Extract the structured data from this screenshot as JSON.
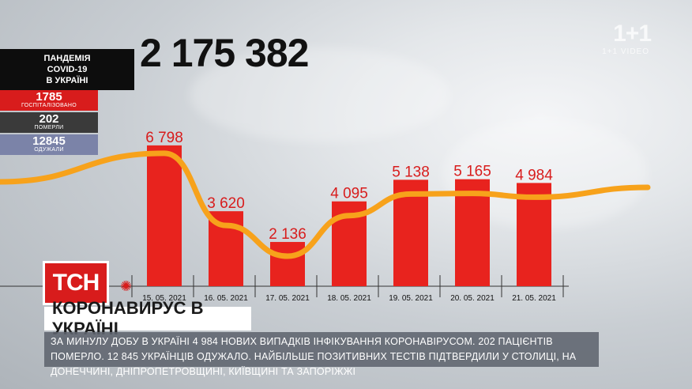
{
  "total": "2 175 382",
  "panel": {
    "title_lines": [
      "ПАНДЕМІЯ",
      "COVID-19",
      "В УКРАЇНІ"
    ],
    "hospitalized": {
      "value": "1785",
      "label": "ГОСПІТАЛІЗОВАНО"
    },
    "died": {
      "value": "202",
      "label": "ПОМЕРЛИ"
    },
    "recovered": {
      "value": "12845",
      "label": "ОДУЖАЛИ"
    }
  },
  "logo": {
    "main": "1+1",
    "sub": "1+1 VIDEO"
  },
  "brand": "ТСН",
  "headline": "КОРОНАВИРУС В УКРАЇНІ",
  "ticker": "ЗА МИНУЛУ ДОБУ В УКРАЇНІ 4 984 НОВИХ ВИПАДКІВ ІНФІКУВАННЯ КОРОНАВІРУСОМ. 202 ПАЦІЄНТІВ ПОМЕРЛО. 12 845 УКРАЇНЦІВ ОДУЖАЛО. НАЙБІЛЬШЕ ПОЗИТИВНИХ ТЕСТІВ ПІДТВЕРДИЛИ У СТОЛИЦІ, НА ДОНЕЧЧИНІ, ДНІПРОПЕТРОВЩИНІ, КИЇВЩИНІ ТА ЗАПОРІЖЖІ",
  "colors": {
    "bar": "#e8231e",
    "trend": "#f7a21b",
    "accent": "#d81c1c"
  },
  "chart_data": {
    "type": "bar",
    "categories": [
      "15. 05. 2021",
      "16. 05. 2021",
      "17. 05. 2021",
      "18. 05. 2021",
      "19. 05. 2021",
      "20. 05. 2021",
      "21. 05. 2021"
    ],
    "values": [
      6798,
      3620,
      2136,
      4095,
      5138,
      5165,
      4984
    ],
    "value_labels": [
      "6 798",
      "3 620",
      "2 136",
      "4 095",
      "5 138",
      "5 165",
      "4 984"
    ]
  }
}
